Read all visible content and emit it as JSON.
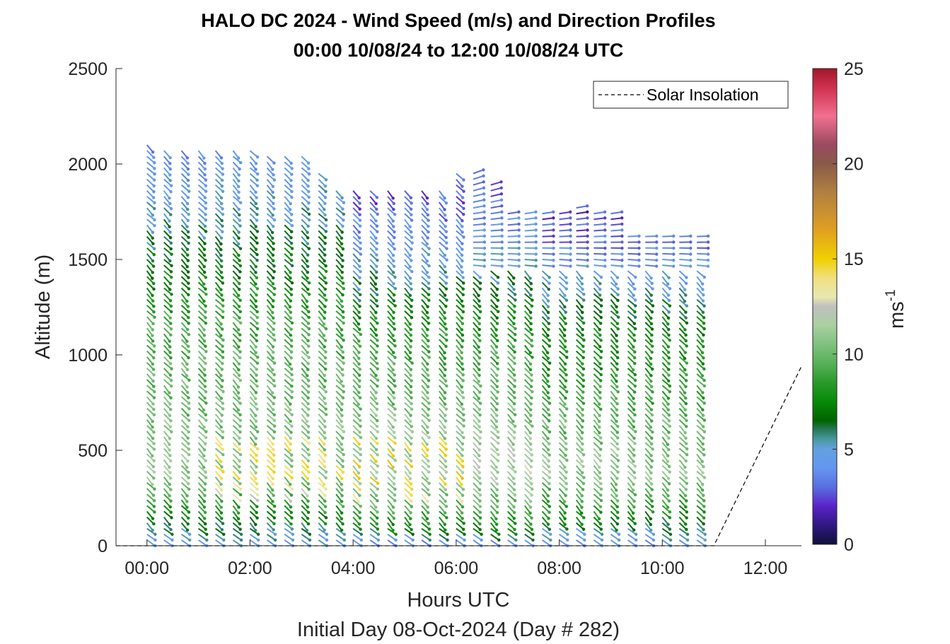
{
  "chart_data": {
    "type": "wind-barb-profile",
    "title": "HALO DC 2024 - Wind Speed (m/s) and Direction Profiles",
    "subtitle": "00:00 10/08/24 to 12:00 10/08/24  UTC",
    "xlabel": "Hours UTC",
    "xlabel2": "Initial Day 08-Oct-2024 (Day # 282)",
    "ylabel": "Altitude (m)",
    "xlim": [
      -0.6,
      12.7
    ],
    "ylim": [
      0,
      2500
    ],
    "x_ticks": [
      0,
      2,
      4,
      6,
      8,
      10,
      12
    ],
    "x_tick_labels": [
      "00:00",
      "02:00",
      "04:00",
      "06:00",
      "08:00",
      "10:00",
      "12:00"
    ],
    "y_ticks": [
      0,
      500,
      1000,
      1500,
      2000,
      2500
    ],
    "y_tick_labels": [
      "0",
      "500",
      "1000",
      "1500",
      "2000",
      "2500"
    ],
    "colorbar": {
      "label": "ms",
      "label_superscript": "-1",
      "range": [
        0,
        25
      ],
      "ticks": [
        0,
        5,
        10,
        15,
        20,
        25
      ],
      "tick_labels": [
        "0",
        "5",
        "10",
        "15",
        "20",
        "25"
      ],
      "colormap": [
        [
          0,
          "#10103a"
        ],
        [
          1,
          "#301880"
        ],
        [
          2,
          "#5a22c8"
        ],
        [
          3,
          "#5a6ee0"
        ],
        [
          4,
          "#6496f0"
        ],
        [
          5,
          "#64a0e0"
        ],
        [
          5.5,
          "#4a9aa0"
        ],
        [
          6,
          "#2a7a60"
        ],
        [
          6.5,
          "#006400"
        ],
        [
          7.5,
          "#088a08"
        ],
        [
          8.5,
          "#2a9a2a"
        ],
        [
          9.5,
          "#58b058"
        ],
        [
          10.5,
          "#80c080"
        ],
        [
          11.5,
          "#a8d0a0"
        ],
        [
          12.5,
          "#c0c0c0"
        ],
        [
          13,
          "#e8e8b0"
        ],
        [
          14,
          "#f0e080"
        ],
        [
          15,
          "#f0d000"
        ],
        [
          16.5,
          "#e0a020"
        ],
        [
          18.5,
          "#b08040"
        ],
        [
          20,
          "#8a5a48"
        ],
        [
          21,
          "#9a4a60"
        ],
        [
          22.5,
          "#f07090"
        ],
        [
          24,
          "#d03050"
        ],
        [
          25,
          "#a01828"
        ]
      ]
    },
    "legend": {
      "entries": [
        "Solar Insolation"
      ],
      "location": "top-right"
    },
    "solar_insolation": {
      "x": [
        -0.6,
        11.0,
        12.7
      ],
      "y": [
        0,
        0,
        940
      ]
    },
    "profile_times_hours": [
      0,
      0.33,
      0.67,
      1,
      1.33,
      1.67,
      2,
      2.33,
      2.67,
      3,
      3.33,
      3.67,
      4,
      4.33,
      4.67,
      5,
      5.33,
      5.67,
      6,
      6.33,
      6.67,
      7,
      7.33,
      7.67,
      8,
      8.33,
      8.67,
      9,
      9.33,
      9.67,
      10,
      10.33,
      10.67
    ],
    "profile_top_altitudes_m": [
      2120,
      2080,
      2080,
      2080,
      2080,
      2080,
      2080,
      2060,
      2060,
      2060,
      1950,
      1880,
      1880,
      1880,
      1880,
      1880,
      1880,
      1880,
      1950,
      1950,
      1900,
      1760,
      1740,
      1750,
      1760,
      1770,
      1760,
      1740,
      1620,
      1620,
      1620,
      1620,
      1620
    ],
    "altitude_step_m": 30,
    "speed_profile_m_s": {
      "altitude_m": [
        0,
        100,
        200,
        400,
        800,
        1200,
        1500,
        1800,
        2100
      ],
      "speed_early": [
        4,
        6,
        8,
        11,
        10,
        9,
        7,
        5,
        4
      ],
      "speed_mid": [
        3,
        7,
        9,
        12,
        10,
        8,
        5,
        3,
        2
      ],
      "speed_late": [
        3,
        6,
        8,
        11,
        9,
        7,
        4,
        2,
        1
      ]
    },
    "wind_direction_note": "Low-level winds from the north-west (barbs tilting toward lower-right), upper layers veering toward west/south-west above ~1500 m after 06:00"
  }
}
